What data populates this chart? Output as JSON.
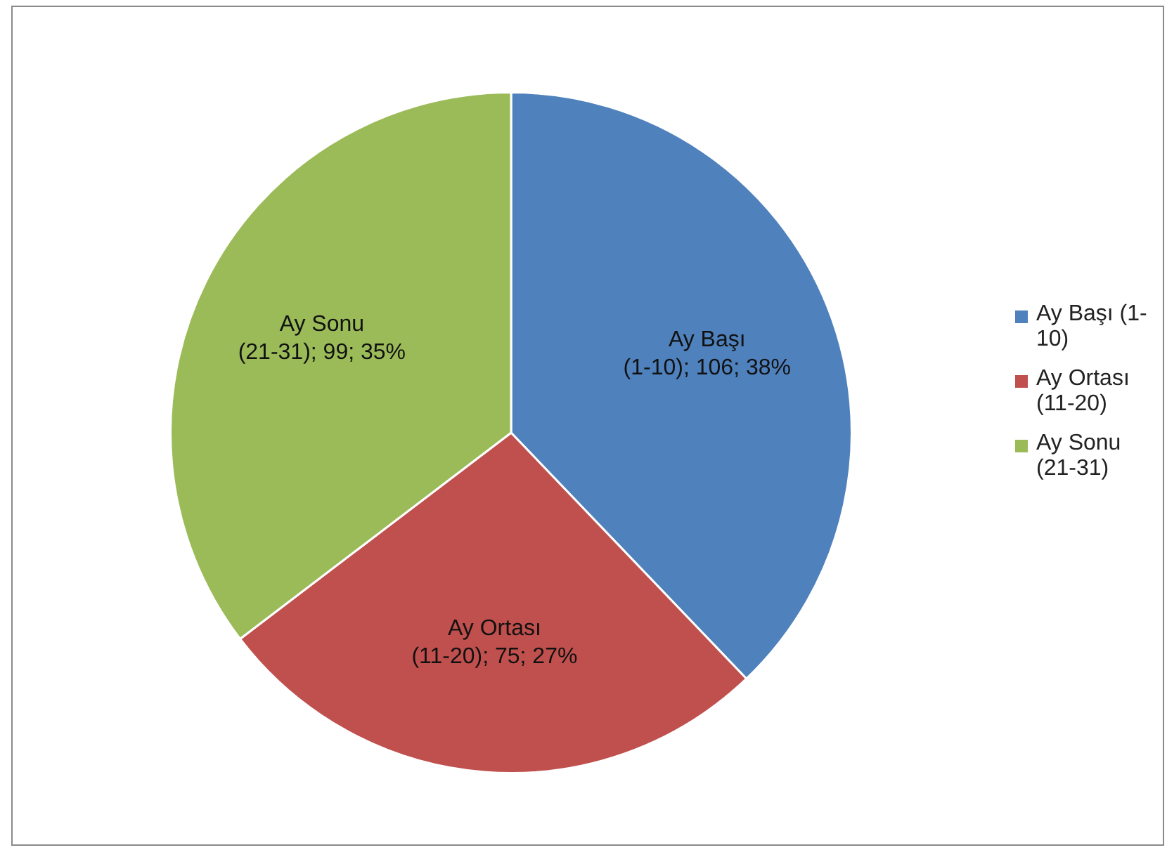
{
  "chart_data": {
    "type": "pie",
    "categories": [
      "Ay Başı (1-10)",
      "Ay Ortası (11-20)",
      "Ay Sonu (21-31)"
    ],
    "values": [
      106,
      75,
      99
    ],
    "colors": [
      "#4f81bd",
      "#c0504d",
      "#9bbb59"
    ],
    "value_labels": [
      "Ay Başı (1-10); 106; 38%",
      "Ay Ortası (11-20); 75; 27%",
      "Ay Sonu (21-31); 99; 35%"
    ],
    "legend": "right"
  }
}
